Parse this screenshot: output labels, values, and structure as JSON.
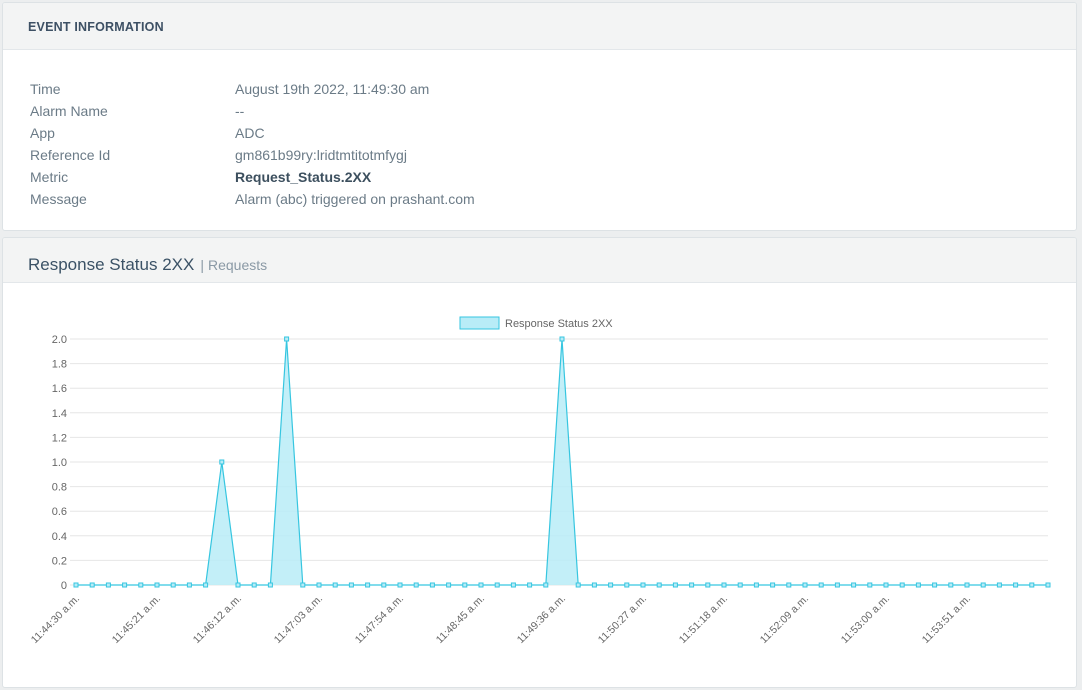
{
  "event": {
    "header": "EVENT INFORMATION",
    "rows": [
      {
        "label": "Time",
        "value": "August 19th 2022, 11:49:30 am"
      },
      {
        "label": "Alarm Name",
        "value": "--"
      },
      {
        "label": "App",
        "value": "ADC"
      },
      {
        "label": "Reference Id",
        "value": "gm861b99ry:lridtmtitotmfygj"
      },
      {
        "label": "Metric",
        "value": "Request_Status.2XX"
      },
      {
        "label": "Message",
        "value": "Alarm (abc) triggered on prashant.com"
      }
    ]
  },
  "chart_panel": {
    "title": "Response Status 2XX",
    "separator": "|",
    "subtitle": "Requests"
  },
  "colors": {
    "line": "#36c6e0",
    "fill": "#b8ecf7",
    "grid": "#e6e6e6"
  },
  "chart_data": {
    "type": "area",
    "legend": {
      "label": "Response Status 2XX",
      "position": "top"
    },
    "ylim": [
      0,
      2.0
    ],
    "y_ticks": [
      "0",
      "0.2",
      "0.4",
      "0.6",
      "0.8",
      "1.0",
      "1.2",
      "1.4",
      "1.6",
      "1.8",
      "2.0"
    ],
    "x_tick_labels": [
      "11:44:30 a.m.",
      "11:45:21 a.m.",
      "11:46:12 a.m.",
      "11:47:03 a.m.",
      "11:47:54 a.m.",
      "11:48:45 a.m.",
      "11:49:36 a.m.",
      "11:50:27 a.m.",
      "11:51:18 a.m.",
      "11:52:09 a.m.",
      "11:53:00 a.m.",
      "11:53:51 a.m."
    ],
    "grid": true,
    "series": [
      {
        "name": "Response Status 2XX",
        "values": [
          0,
          0,
          0,
          0,
          0,
          0,
          0,
          0,
          0,
          1,
          0,
          0,
          0,
          2,
          0,
          0,
          0,
          0,
          0,
          0,
          0,
          0,
          0,
          0,
          0,
          0,
          0,
          0,
          0,
          0,
          2,
          0,
          0,
          0,
          0,
          0,
          0,
          0,
          0,
          0,
          0,
          0,
          0,
          0,
          0,
          0,
          0,
          0,
          0,
          0,
          0,
          0,
          0,
          0,
          0,
          0,
          0,
          0,
          0,
          0,
          0
        ]
      }
    ]
  }
}
